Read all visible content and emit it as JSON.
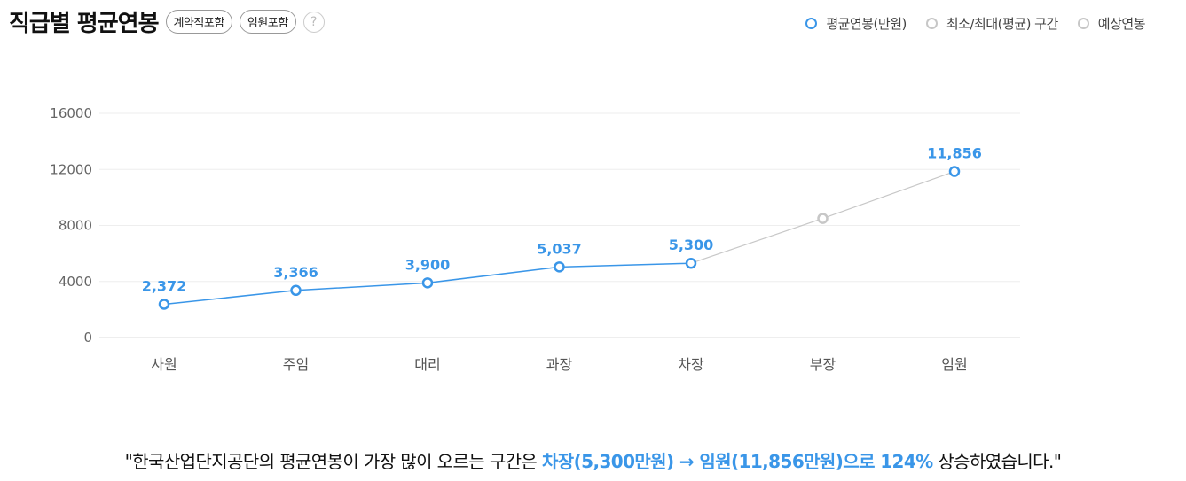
{
  "header": {
    "title": "직급별 평균연봉",
    "chip_contract": "계약직포함",
    "chip_executive": "임원포함",
    "help_icon": "?"
  },
  "legend": [
    {
      "label": "평균연봉(만원)",
      "color": "#3a96e8"
    },
    {
      "label": "최소/최대(평균) 구간",
      "color": "#c7c7c7"
    },
    {
      "label": "예상연봉",
      "color": "#c7c7c7"
    }
  ],
  "chart_data": {
    "type": "line",
    "categories": [
      "사원",
      "주임",
      "대리",
      "과장",
      "차장",
      "부장",
      "임원"
    ],
    "ylim": [
      0,
      16000
    ],
    "yticks": [
      "16000",
      "12000",
      "8000",
      "4000",
      "0"
    ],
    "grid": true,
    "series": [
      {
        "name": "평균연봉(만원)",
        "color": "#3a96e8",
        "values": [
          2372,
          3366,
          3900,
          5037,
          5300,
          null,
          11856
        ],
        "labels": [
          "2,372",
          "3,366",
          "3,900",
          "5,037",
          "5,300",
          "",
          "11,856"
        ]
      },
      {
        "name": "예상연봉",
        "color": "#c7c7c7",
        "values": [
          null,
          null,
          null,
          null,
          5300,
          8500,
          11856
        ]
      }
    ]
  },
  "summary": {
    "prefix": "\"한국산업단지공단의 평균연봉이 가장 많이 오르는 구간은 ",
    "highlight": "차장(5,300만원) → 임원(11,856만원)으로 124%",
    "suffix": " 상승하였습니다.\""
  }
}
